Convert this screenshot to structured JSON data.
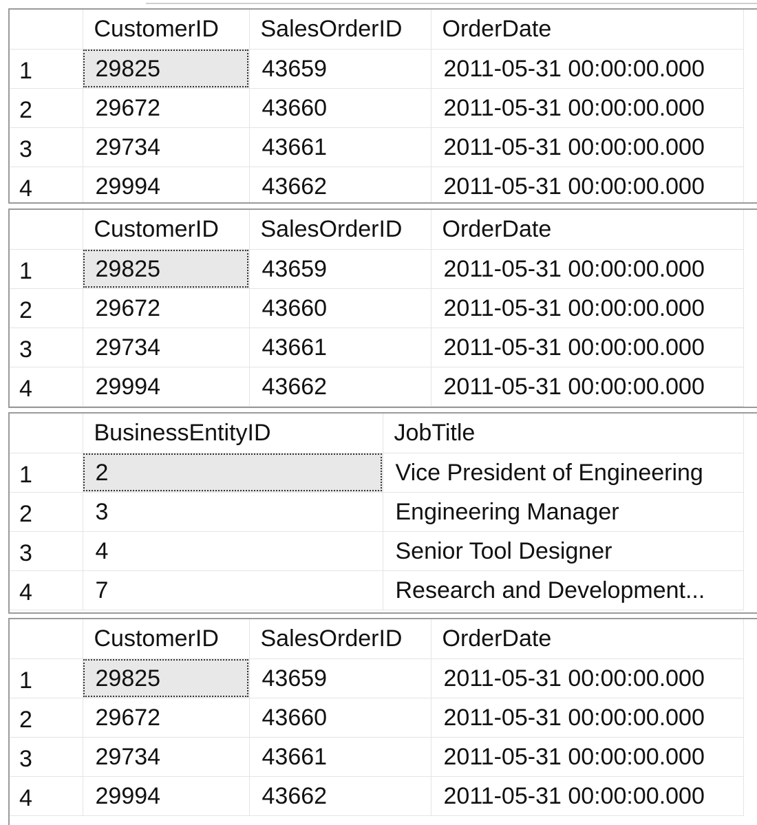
{
  "result_grids": [
    {
      "columns": [
        "CustomerID",
        "SalesOrderID",
        "OrderDate"
      ],
      "rows": [
        {
          "num": "1",
          "cells": [
            "29825",
            "43659",
            "2011-05-31 00:00:00.000"
          ]
        },
        {
          "num": "2",
          "cells": [
            "29672",
            "43660",
            "2011-05-31 00:00:00.000"
          ]
        },
        {
          "num": "3",
          "cells": [
            "29734",
            "43661",
            "2011-05-31 00:00:00.000"
          ]
        },
        {
          "num": "4",
          "cells": [
            "29994",
            "43662",
            "2011-05-31 00:00:00.000"
          ]
        }
      ]
    },
    {
      "columns": [
        "CustomerID",
        "SalesOrderID",
        "OrderDate"
      ],
      "rows": [
        {
          "num": "1",
          "cells": [
            "29825",
            "43659",
            "2011-05-31 00:00:00.000"
          ]
        },
        {
          "num": "2",
          "cells": [
            "29672",
            "43660",
            "2011-05-31 00:00:00.000"
          ]
        },
        {
          "num": "3",
          "cells": [
            "29734",
            "43661",
            "2011-05-31 00:00:00.000"
          ]
        },
        {
          "num": "4",
          "cells": [
            "29994",
            "43662",
            "2011-05-31 00:00:00.000"
          ]
        }
      ]
    },
    {
      "columns": [
        "BusinessEntityID",
        "JobTitle"
      ],
      "rows": [
        {
          "num": "1",
          "cells": [
            "2",
            "Vice President of Engineering"
          ]
        },
        {
          "num": "2",
          "cells": [
            "3",
            "Engineering Manager"
          ]
        },
        {
          "num": "3",
          "cells": [
            "4",
            "Senior Tool Designer"
          ]
        },
        {
          "num": "4",
          "cells": [
            "7",
            "Research and Development..."
          ]
        }
      ]
    },
    {
      "columns": [
        "CustomerID",
        "SalesOrderID",
        "OrderDate"
      ],
      "rows": [
        {
          "num": "1",
          "cells": [
            "29825",
            "43659",
            "2011-05-31 00:00:00.000"
          ]
        },
        {
          "num": "2",
          "cells": [
            "29672",
            "43660",
            "2011-05-31 00:00:00.000"
          ]
        },
        {
          "num": "3",
          "cells": [
            "29734",
            "43661",
            "2011-05-31 00:00:00.000"
          ]
        },
        {
          "num": "4",
          "cells": [
            "29994",
            "43662",
            "2011-05-31 00:00:00.000"
          ]
        }
      ]
    }
  ],
  "colors": {
    "selected_cell_bg": "#e8e8e8",
    "grid_border": "#9a9a9a",
    "cell_border": "#e4e4e4"
  }
}
